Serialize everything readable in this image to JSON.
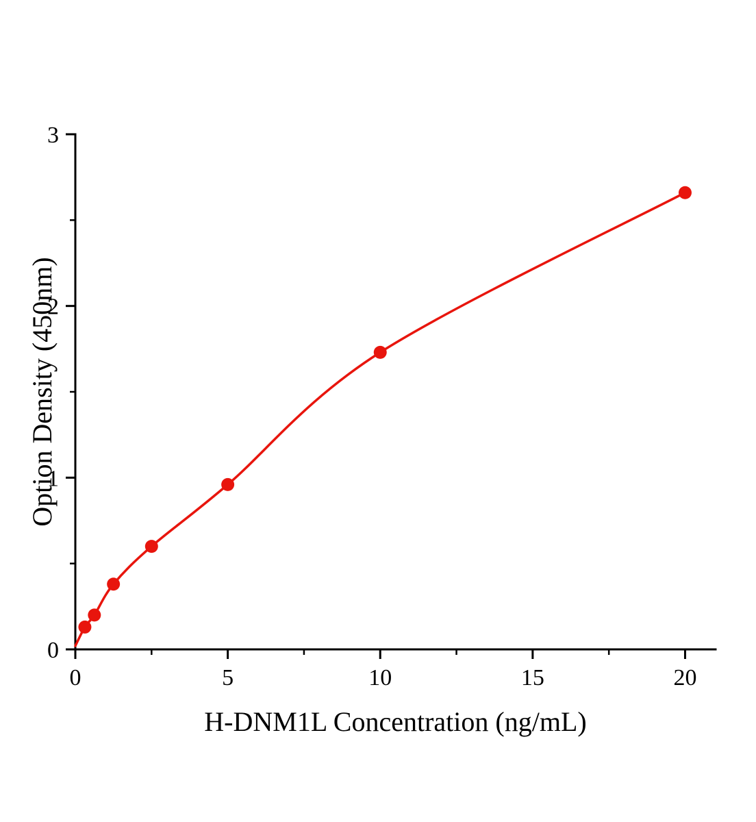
{
  "figure": {
    "background": "#ffffff"
  },
  "chart_data": {
    "type": "scatter",
    "title": "",
    "xlabel": "H-DNM1L Concentration (ng/mL)",
    "ylabel": "Option Density (450nm)",
    "x": [
      0.313,
      0.625,
      1.25,
      2.5,
      5,
      10,
      20
    ],
    "y": [
      0.13,
      0.2,
      0.38,
      0.6,
      0.96,
      1.73,
      2.66
    ],
    "curve_start": [
      0,
      0.02
    ],
    "xlim": [
      0,
      21
    ],
    "ylim": [
      0,
      3
    ],
    "x_major_ticks": [
      0,
      5,
      10,
      15,
      20
    ],
    "x_minor_ticks": [
      2.5,
      7.5,
      12.5,
      17.5
    ],
    "y_major_ticks": [
      0,
      1,
      2,
      3
    ],
    "y_minor_ticks": [
      0.5,
      1.5,
      2.5
    ],
    "line_color": "#e8150d",
    "marker_color": "#e8150d",
    "axis_color": "#000000",
    "grid": false,
    "legend": "none"
  }
}
